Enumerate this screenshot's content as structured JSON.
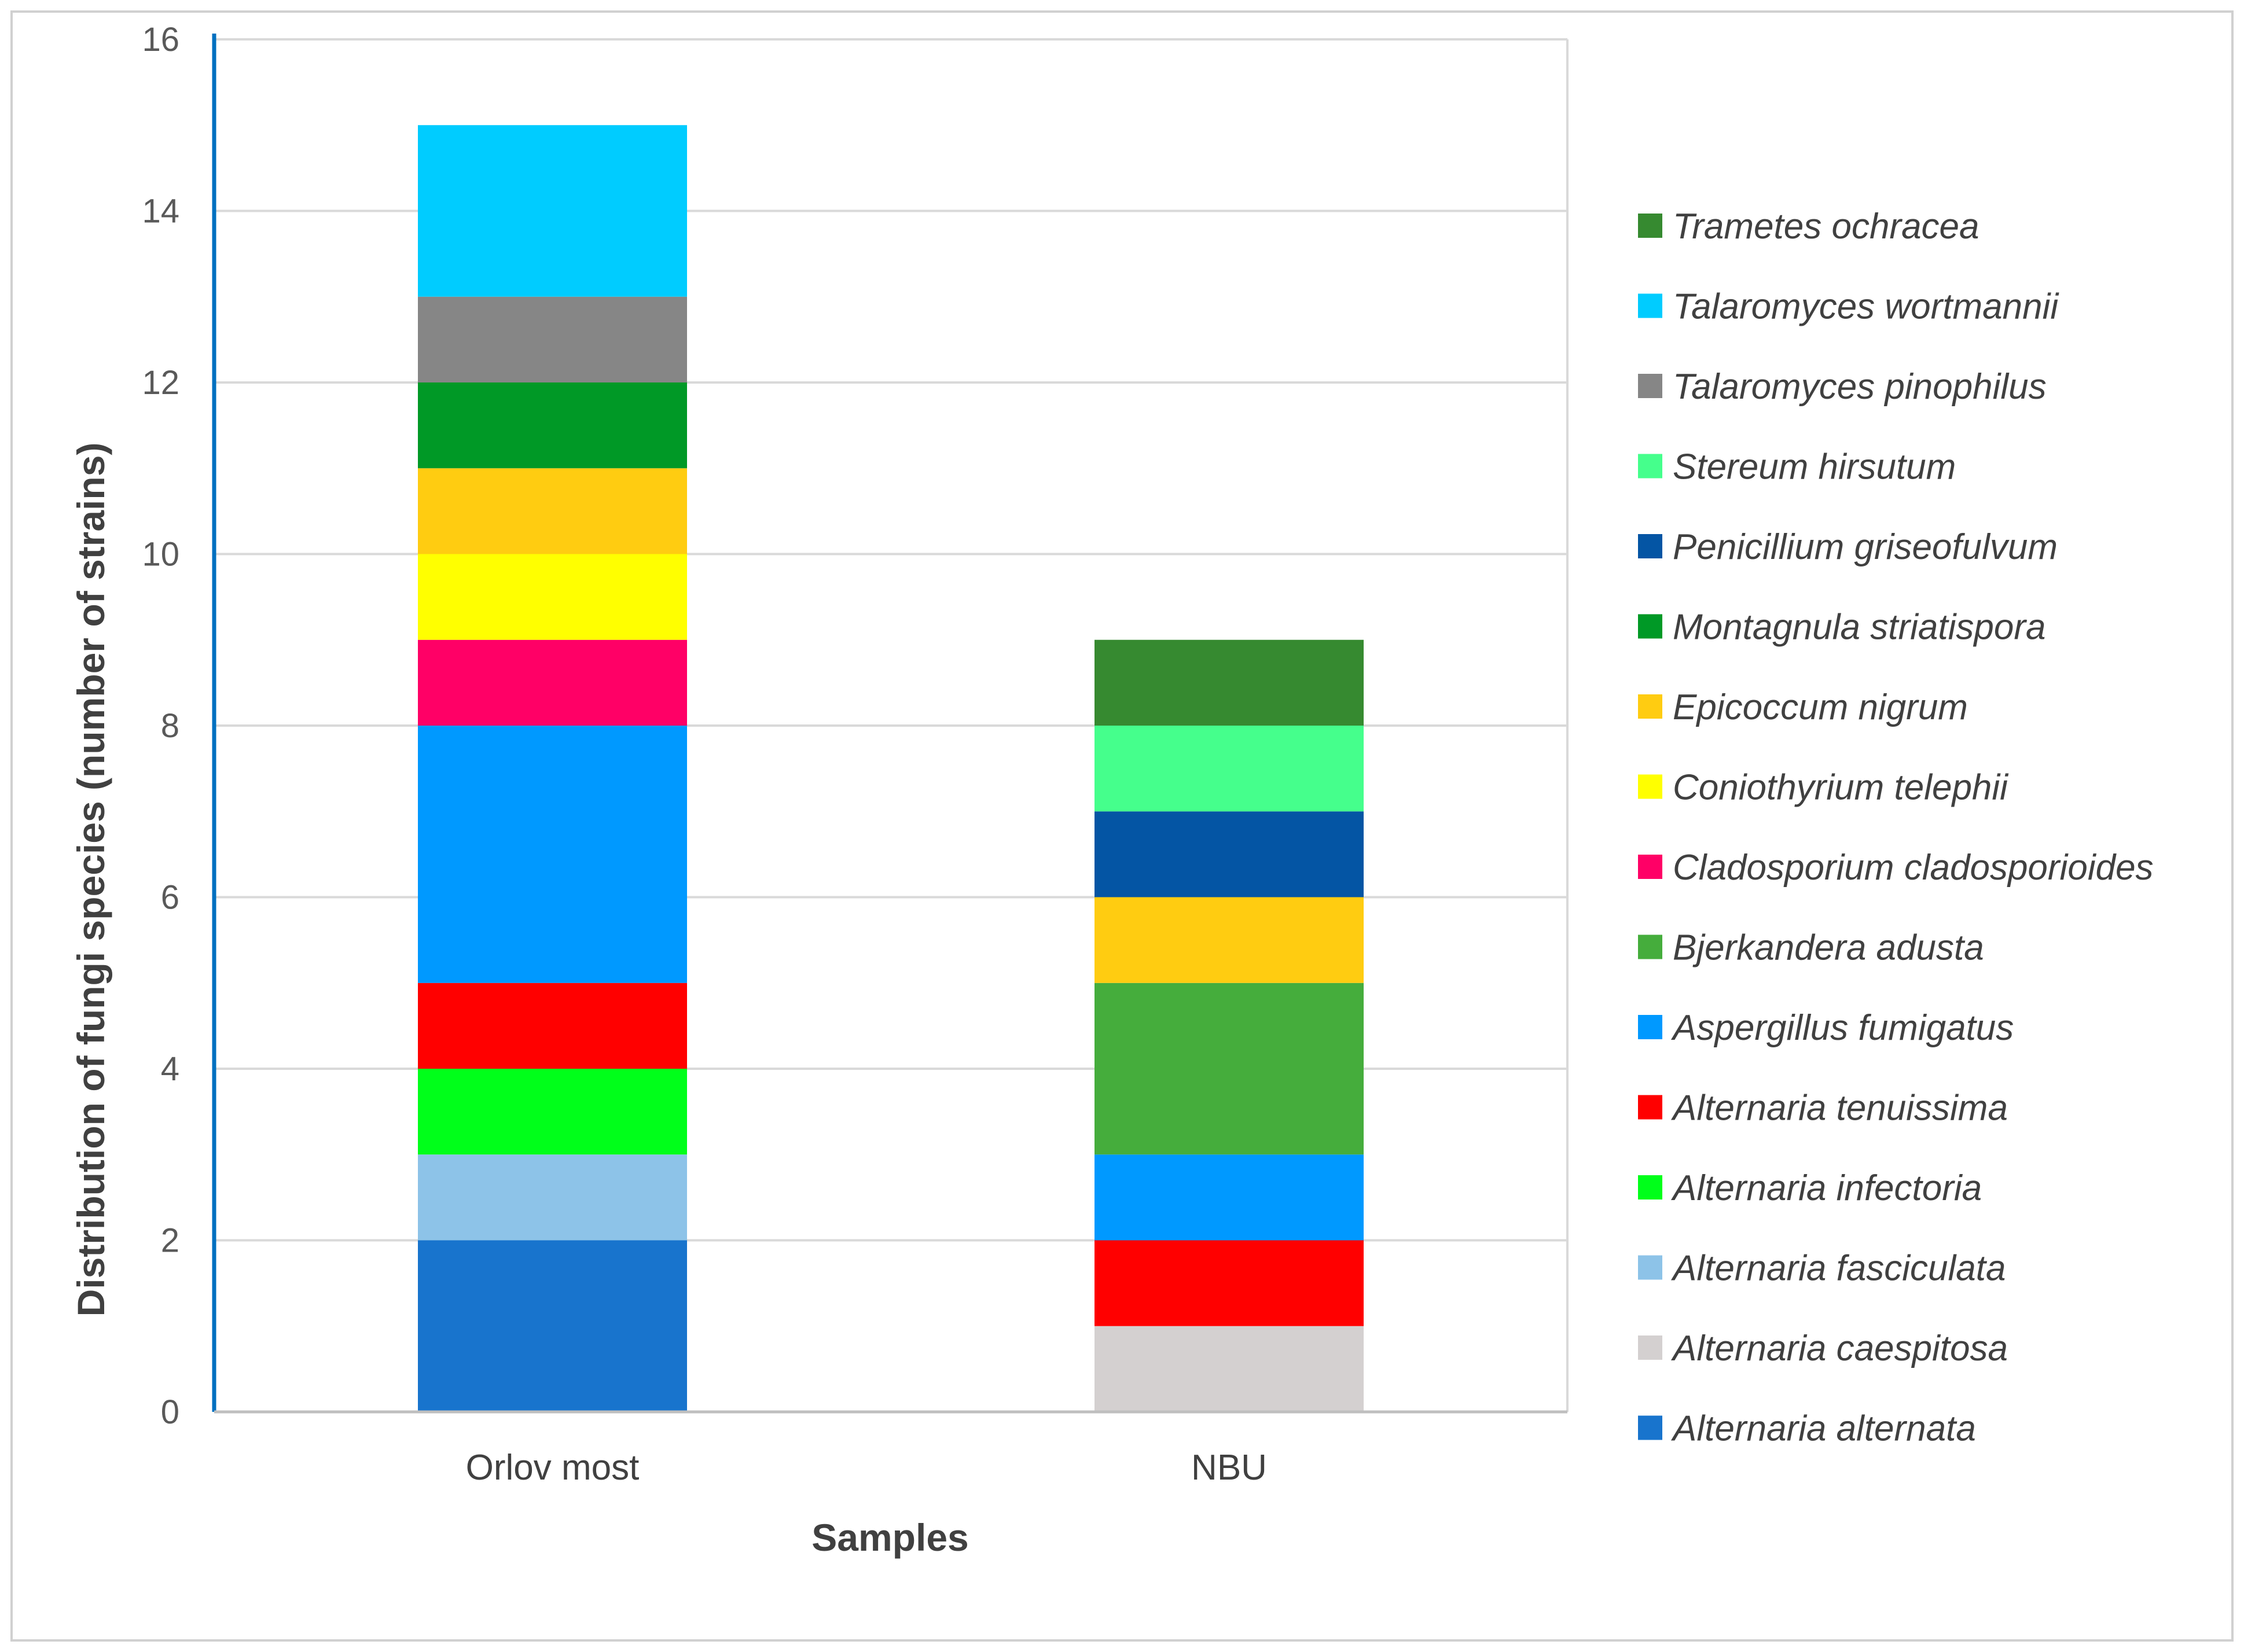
{
  "chart_data": {
    "type": "bar",
    "stacked": true,
    "title": "",
    "xlabel": "Samples",
    "ylabel": "Distribution of fungi species (number of strains)",
    "ylim": [
      0,
      16
    ],
    "yticks": [
      0,
      2,
      4,
      6,
      8,
      10,
      12,
      14,
      16
    ],
    "grid": true,
    "legend_position": "right",
    "categories": [
      "Orlov most",
      "NBU"
    ],
    "series": [
      {
        "name": "Alternaria alternata",
        "color": "#1874CD",
        "values": [
          2,
          0
        ]
      },
      {
        "name": "Alternaria caespitosa",
        "color": "#D4D0D0",
        "values": [
          0,
          1
        ]
      },
      {
        "name": "Alternaria fasciculata",
        "color": "#8DC3E8",
        "values": [
          1,
          0
        ]
      },
      {
        "name": "Alternaria infectoria",
        "color": "#00FF1A",
        "values": [
          1,
          0
        ]
      },
      {
        "name": "Alternaria tenuissima",
        "color": "#FF0000",
        "values": [
          1,
          1
        ]
      },
      {
        "name": "Aspergillus fumigatus",
        "color": "#0099FF",
        "values": [
          3,
          1
        ]
      },
      {
        "name": "Bjerkandera adusta",
        "color": "#45AD3C",
        "values": [
          0,
          2
        ]
      },
      {
        "name": "Cladosporium cladosporioides",
        "color": "#FF0066",
        "values": [
          1,
          0
        ]
      },
      {
        "name": "Coniothyrium telephii",
        "color": "#FFFF00",
        "values": [
          1,
          0
        ]
      },
      {
        "name": "Epicoccum nigrum",
        "color": "#FFCC11",
        "values": [
          1,
          1
        ]
      },
      {
        "name": "Montagnula striatispora",
        "color": "#009926",
        "values": [
          1,
          0
        ]
      },
      {
        "name": "Penicillium griseofulvum",
        "color": "#0455A4",
        "values": [
          0,
          1
        ]
      },
      {
        "name": "Stereum hirsutum",
        "color": "#45FF8C",
        "values": [
          0,
          1
        ]
      },
      {
        "name": "Talaromyces pinophilus",
        "color": "#868686",
        "values": [
          1,
          0
        ]
      },
      {
        "name": "Talaromyces wortmannii",
        "color": "#00CCFF",
        "values": [
          2,
          0
        ]
      },
      {
        "name": "Trametes ochracea",
        "color": "#368A30",
        "values": [
          0,
          1
        ]
      }
    ],
    "colors": {
      "gridline": "#D9D9D9",
      "axis_line": "#0070C0",
      "frame": "#D0D0D0"
    }
  }
}
